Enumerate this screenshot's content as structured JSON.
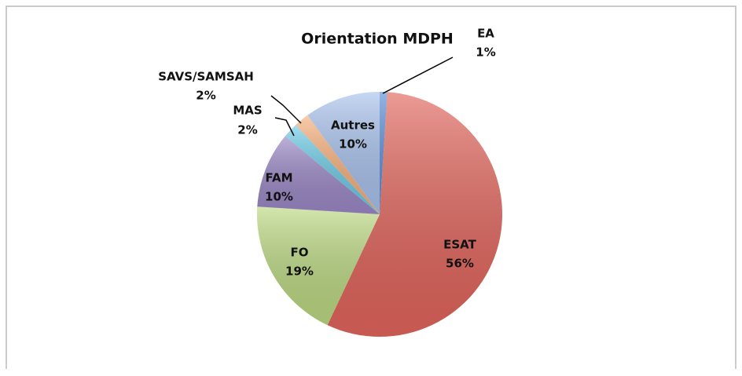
{
  "chart_data": {
    "type": "pie",
    "title": "Orientation MDPH",
    "categories": [
      "EA",
      "ESAT",
      "FO",
      "FAM",
      "MAS",
      "SAVS/SAMSAH",
      "Autres"
    ],
    "values": [
      1,
      56,
      19,
      10,
      2,
      2,
      10
    ],
    "value_labels": [
      "1%",
      "56%",
      "19%",
      "10%",
      "2%",
      "2%",
      "10%"
    ],
    "colors": [
      "#5b8fd8",
      "#e2655c",
      "#bcd982",
      "#9b88c6",
      "#6ccbe6",
      "#f8b07c",
      "#a9c3ee"
    ]
  }
}
